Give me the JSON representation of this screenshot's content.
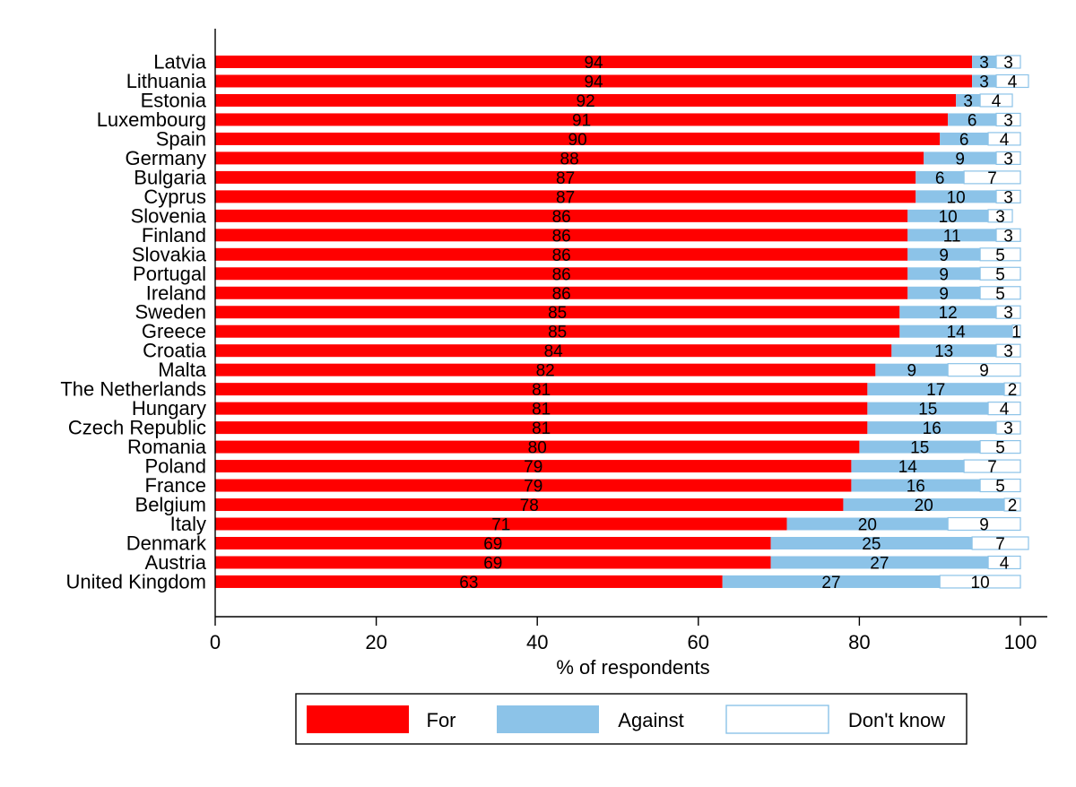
{
  "chart_data": {
    "type": "bar",
    "orientation": "horizontal",
    "stacked": true,
    "categories": [
      "Latvia",
      "Lithuania",
      "Estonia",
      "Luxembourg",
      "Spain",
      "Germany",
      "Bulgaria",
      "Cyprus",
      "Slovenia",
      "Finland",
      "Slovakia",
      "Portugal",
      "Ireland",
      "Sweden",
      "Greece",
      "Croatia",
      "Malta",
      "The Netherlands",
      "Hungary",
      "Czech Republic",
      "Romania",
      "Poland",
      "France",
      "Belgium",
      "Italy",
      "Denmark",
      "Austria",
      "United Kingdom"
    ],
    "series": [
      {
        "name": "For",
        "color": "#ff0000",
        "values": [
          94,
          94,
          92,
          91,
          90,
          88,
          87,
          87,
          86,
          86,
          86,
          86,
          86,
          85,
          85,
          84,
          82,
          81,
          81,
          81,
          80,
          79,
          79,
          78,
          71,
          69,
          69,
          63
        ]
      },
      {
        "name": "Against",
        "color": "#8cc3e8",
        "values": [
          3,
          3,
          3,
          6,
          6,
          9,
          6,
          10,
          10,
          11,
          9,
          9,
          9,
          12,
          14,
          13,
          9,
          17,
          15,
          16,
          15,
          14,
          16,
          20,
          20,
          25,
          27,
          27
        ]
      },
      {
        "name": "Don't know",
        "color": "#ffffff",
        "values": [
          3,
          4,
          4,
          3,
          4,
          3,
          7,
          3,
          3,
          3,
          5,
          5,
          5,
          3,
          1,
          3,
          9,
          2,
          4,
          3,
          5,
          7,
          5,
          2,
          9,
          7,
          4,
          10
        ]
      }
    ],
    "xlabel": "% of respondents",
    "ylabel": "",
    "xlim": [
      0,
      100
    ],
    "xticks": [
      0,
      20,
      40,
      60,
      80,
      100
    ],
    "grid": false,
    "legend_position": "bottom"
  }
}
